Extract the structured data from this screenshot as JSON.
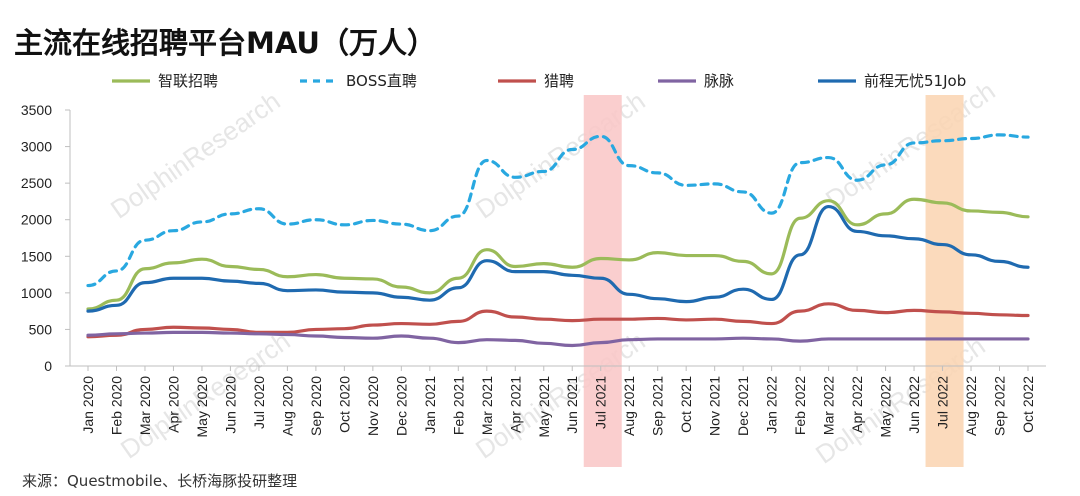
{
  "title": "主流在线招聘平台MAU（万人）",
  "source": "来源：Questmobile、长桥海豚投研整理",
  "watermark": "DolphinResearch",
  "chart_data": {
    "type": "line",
    "categories": [
      "Jan 2020",
      "Feb 2020",
      "Mar 2020",
      "Apr 2020",
      "May 2020",
      "Jun 2020",
      "Jul 2020",
      "Aug 2020",
      "Sep 2020",
      "Oct 2020",
      "Nov 2020",
      "Dec 2020",
      "Jan 2021",
      "Feb 2021",
      "Mar 2021",
      "Apr 2021",
      "May 2021",
      "Jun 2021",
      "Jul 2021",
      "Aug 2021",
      "Sep 2021",
      "Oct 2021",
      "Nov 2021",
      "Dec 2021",
      "Jan 2022",
      "Feb 2022",
      "Mar 2022",
      "Apr 2022",
      "May 2022",
      "Jun 2022",
      "Jul 2022",
      "Aug 2022",
      "Sep 2022",
      "Oct 2022"
    ],
    "ylim": [
      0,
      3500
    ],
    "yticks": [
      0,
      500,
      1000,
      1500,
      2000,
      2500,
      3000,
      3500
    ],
    "highlights": [
      {
        "category": "Jul 2021",
        "color": "#f9c5c5"
      },
      {
        "category": "Jul 2022",
        "color": "#fad3b0"
      }
    ],
    "series": [
      {
        "name": "智联招聘",
        "color": "#9bbb59",
        "dash": false,
        "values": [
          780,
          900,
          1330,
          1410,
          1460,
          1360,
          1320,
          1220,
          1250,
          1200,
          1190,
          1080,
          1000,
          1200,
          1590,
          1360,
          1400,
          1350,
          1470,
          1450,
          1550,
          1510,
          1510,
          1430,
          1260,
          2020,
          2260,
          1930,
          2080,
          2280,
          2230,
          2120,
          2100,
          2040
        ]
      },
      {
        "name": "BOSS直聘",
        "color": "#29a8e0",
        "dash": true,
        "values": [
          1100,
          1300,
          1720,
          1850,
          1970,
          2080,
          2150,
          1940,
          2000,
          1930,
          1990,
          1940,
          1850,
          2050,
          2810,
          2580,
          2660,
          2960,
          3140,
          2740,
          2640,
          2470,
          2490,
          2380,
          2090,
          2780,
          2850,
          2540,
          2750,
          3050,
          3080,
          3110,
          3160,
          3130
        ]
      },
      {
        "name": "猎聘",
        "color": "#c0504d",
        "dash": false,
        "values": [
          400,
          420,
          500,
          530,
          520,
          500,
          460,
          460,
          500,
          510,
          560,
          580,
          570,
          610,
          750,
          670,
          640,
          620,
          640,
          640,
          650,
          630,
          640,
          610,
          580,
          750,
          850,
          760,
          730,
          760,
          740,
          720,
          700,
          690
        ]
      },
      {
        "name": "脉脉",
        "color": "#8064a2",
        "dash": false,
        "values": [
          420,
          440,
          450,
          460,
          460,
          450,
          440,
          430,
          410,
          390,
          380,
          410,
          380,
          320,
          360,
          350,
          310,
          280,
          320,
          360,
          370,
          370,
          370,
          380,
          370,
          340,
          370,
          370,
          370,
          370,
          370,
          370,
          370,
          370
        ]
      },
      {
        "name": "前程无忧51Job",
        "color": "#1f6ab0",
        "dash": false,
        "values": [
          750,
          830,
          1140,
          1200,
          1200,
          1160,
          1130,
          1030,
          1040,
          1010,
          1000,
          940,
          900,
          1070,
          1440,
          1290,
          1290,
          1240,
          1200,
          980,
          920,
          880,
          940,
          1050,
          910,
          1520,
          2180,
          1840,
          1780,
          1740,
          1660,
          1520,
          1430,
          1350
        ]
      }
    ]
  }
}
